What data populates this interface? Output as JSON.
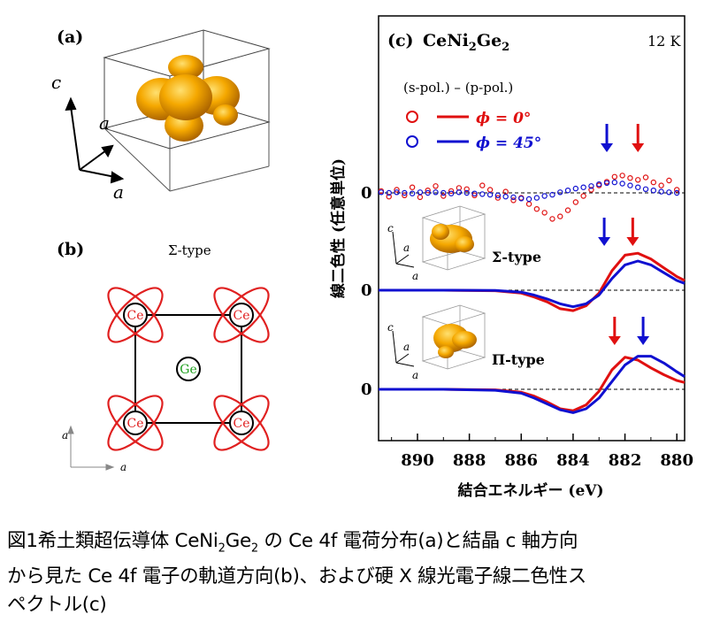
{
  "panel_a": {
    "label": "(a)",
    "axis_c": "c",
    "axis_a1": "a",
    "axis_a2": "a"
  },
  "panel_b": {
    "label": "(b)",
    "type_label": "Σ-type",
    "ce_label": "Ce",
    "ge_label": "Ge",
    "axis_a_vertical": "a",
    "axis_a_horizontal": "a",
    "colors": {
      "orbital": "#e02020",
      "ce_text": "#e02020",
      "ge_text": "#20a020"
    }
  },
  "panel_c": {
    "label": "(c)",
    "compound_main": "CeNi",
    "compound_sub1": "2",
    "compound_mid": "Ge",
    "compound_sub2": "2",
    "temperature": "12 K",
    "difference_label": "(s-pol.) – (p-pol.)",
    "legend": [
      {
        "phi": "ϕ = 0°",
        "color": "#e01010"
      },
      {
        "phi": "ϕ = 45°",
        "color": "#1010d0"
      }
    ],
    "inset_sigma": {
      "type_label": "Σ-type",
      "axis_c": "c",
      "axis_a1": "a",
      "axis_a2": "a"
    },
    "inset_pi": {
      "type_label": "Π-type",
      "axis_c": "c",
      "axis_a1": "a",
      "axis_a2": "a"
    },
    "ylabel": "線二色性 (任意単位)",
    "xlabel": "結合エネルギー (eV)",
    "zero_labels": [
      "0",
      "0",
      "0"
    ]
  },
  "chart_data": {
    "type": "line",
    "xlabel": "結合エネルギー (eV)",
    "ylabel": "線二色性 (任意単位)",
    "x_ticks": [
      890,
      888,
      886,
      884,
      882,
      880
    ],
    "xlim": [
      891.5,
      879.7
    ],
    "x_reversed": true,
    "panels": [
      {
        "name": "(s-pol.) – (p-pol.)",
        "style": "points",
        "series": [
          {
            "name": "ϕ = 0°",
            "color": "#e01010",
            "x": [
              891.4,
              891.1,
              890.8,
              890.5,
              890.2,
              889.9,
              889.6,
              889.3,
              889.0,
              888.7,
              888.4,
              888.1,
              887.8,
              887.5,
              887.2,
              886.9,
              886.6,
              886.3,
              886.0,
              885.7,
              885.4,
              885.1,
              884.8,
              884.5,
              884.2,
              883.9,
              883.6,
              883.3,
              883.0,
              882.7,
              882.4,
              882.1,
              881.8,
              881.5,
              881.2,
              880.9,
              880.6,
              880.3,
              880.0
            ],
            "y": [
              0.3,
              -0.6,
              0.5,
              -0.4,
              0.9,
              -0.7,
              0.4,
              1.1,
              -0.5,
              0.3,
              0.8,
              0.6,
              -0.4,
              1.2,
              0.5,
              -0.8,
              0.2,
              -1.2,
              -0.8,
              -1.8,
              -2.6,
              -3.2,
              -4.2,
              -3.8,
              -2.8,
              -1.5,
              -0.5,
              0.5,
              1.2,
              1.8,
              2.6,
              2.8,
              2.4,
              2.1,
              2.5,
              1.7,
              1.2,
              2.0,
              0.5
            ]
          },
          {
            "name": "ϕ = 45°",
            "color": "#1010d0",
            "x": [
              891.4,
              891.1,
              890.8,
              890.5,
              890.2,
              889.9,
              889.6,
              889.3,
              889.0,
              888.7,
              888.4,
              888.1,
              887.8,
              887.5,
              887.2,
              886.9,
              886.6,
              886.3,
              886.0,
              885.7,
              885.4,
              885.1,
              884.8,
              884.5,
              884.2,
              883.9,
              883.6,
              883.3,
              883.0,
              882.7,
              882.4,
              882.1,
              881.8,
              881.5,
              881.2,
              880.9,
              880.6,
              880.3,
              880.0
            ],
            "y": [
              0.1,
              0.0,
              0.1,
              0.0,
              -0.1,
              0.1,
              0.0,
              0.1,
              0.0,
              -0.1,
              0.1,
              0.0,
              -0.1,
              -0.2,
              -0.3,
              -0.4,
              -0.6,
              -0.7,
              -0.9,
              -1.0,
              -0.8,
              -0.5,
              -0.3,
              0.1,
              0.4,
              0.7,
              0.9,
              1.1,
              1.4,
              1.6,
              1.7,
              1.5,
              1.2,
              0.9,
              0.6,
              0.4,
              0.2,
              0.1,
              0.0
            ]
          }
        ]
      },
      {
        "name": "Σ-type",
        "style": "line",
        "series": [
          {
            "name": "ϕ = 0°",
            "color": "#e01010",
            "x": [
              891.5,
              889.0,
              887.0,
              886.0,
              885.5,
              885.0,
              884.5,
              884.0,
              883.5,
              883.0,
              882.5,
              882.0,
              881.5,
              881.0,
              880.5,
              880.0,
              879.7
            ],
            "y": [
              0.0,
              0.0,
              -0.05,
              -0.3,
              -0.7,
              -1.2,
              -1.9,
              -2.1,
              -1.6,
              -0.3,
              2.0,
              3.6,
              3.8,
              3.2,
              2.3,
              1.4,
              1.0
            ]
          },
          {
            "name": "ϕ = 45°",
            "color": "#1010d0",
            "x": [
              891.5,
              889.0,
              887.0,
              886.0,
              885.5,
              885.0,
              884.5,
              884.0,
              883.5,
              883.0,
              882.5,
              882.0,
              881.5,
              881.0,
              880.5,
              880.0,
              879.7
            ],
            "y": [
              0.0,
              0.0,
              -0.02,
              -0.2,
              -0.5,
              -0.9,
              -1.4,
              -1.7,
              -1.4,
              -0.5,
              1.2,
              2.6,
              3.0,
              2.6,
              1.8,
              1.0,
              0.7
            ]
          }
        ]
      },
      {
        "name": "Π-type",
        "style": "line",
        "series": [
          {
            "name": "ϕ = 0°",
            "color": "#e01010",
            "x": [
              891.5,
              889.0,
              887.0,
              886.0,
              885.5,
              885.0,
              884.5,
              884.0,
              883.5,
              883.0,
              882.5,
              882.0,
              881.5,
              881.0,
              880.5,
              880.0,
              879.7
            ],
            "y": [
              0.0,
              0.0,
              -0.05,
              -0.3,
              -0.7,
              -1.3,
              -2.0,
              -2.2,
              -1.6,
              -0.2,
              2.0,
              3.3,
              3.0,
              2.2,
              1.5,
              0.9,
              0.7
            ]
          },
          {
            "name": "ϕ = 45°",
            "color": "#1010d0",
            "x": [
              891.5,
              889.0,
              887.0,
              886.0,
              885.5,
              885.0,
              884.5,
              884.0,
              883.5,
              883.0,
              882.5,
              882.0,
              881.5,
              881.0,
              880.5,
              880.0,
              879.7
            ],
            "y": [
              0.0,
              0.0,
              -0.1,
              -0.4,
              -0.9,
              -1.5,
              -2.1,
              -2.4,
              -2.0,
              -0.9,
              0.8,
              2.5,
              3.4,
              3.4,
              2.7,
              1.8,
              1.3
            ]
          }
        ]
      }
    ],
    "arrows": [
      {
        "panel": 0,
        "x": 881.5,
        "color": "#e01010"
      },
      {
        "panel": 0,
        "x": 882.7,
        "color": "#1010d0"
      },
      {
        "panel": 1,
        "x": 881.7,
        "color": "#e01010"
      },
      {
        "panel": 1,
        "x": 882.8,
        "color": "#1010d0"
      },
      {
        "panel": 2,
        "x": 882.4,
        "color": "#e01010"
      },
      {
        "panel": 2,
        "x": 881.3,
        "color": "#1010d0"
      }
    ]
  },
  "caption": {
    "line1_a": "図1希土類超伝導体 CeNi",
    "line1_sub1": "2",
    "line1_b": "Ge",
    "line1_sub2": "2",
    "line1_c": " の Ce 4f 電荷分布(a)と結晶 c 軸方向",
    "line2": "から見た Ce 4f 電子の軌道方向(b)、および硬 X 線光電子線二色性ス",
    "line3": "ペクトル(c)"
  }
}
